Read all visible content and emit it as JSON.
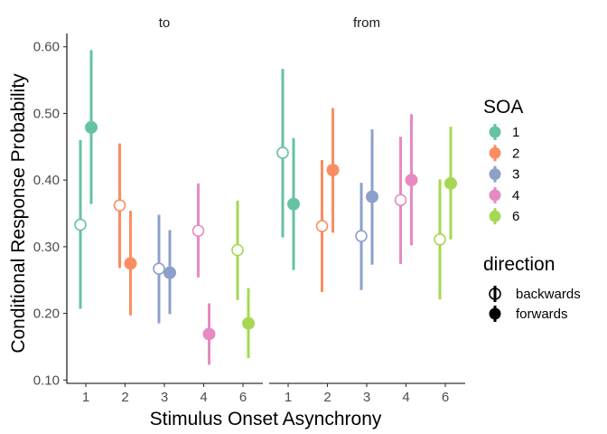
{
  "chart_data": {
    "type": "scatter",
    "xlabel": "Stimulus Onset Asynchrony",
    "ylabel": "Conditional Response Probability",
    "ylim": [
      0.095,
      0.62
    ],
    "yticks": [
      "0.10",
      "0.20",
      "0.30",
      "0.40",
      "0.50",
      "0.60"
    ],
    "categories": [
      "1",
      "2",
      "3",
      "4",
      "6"
    ],
    "panels": [
      "to",
      "from"
    ],
    "grid": false,
    "legend_position": "right",
    "colors": {
      "1": "#66C2A5",
      "2": "#FC8D62",
      "3": "#8DA0CB",
      "4": "#E78AC3",
      "6": "#A6D854"
    },
    "legend": {
      "soa_title": "SOA",
      "soa_items": [
        "1",
        "2",
        "3",
        "4",
        "6"
      ],
      "direction_title": "direction",
      "direction_items": [
        "backwards",
        "forwards"
      ]
    },
    "series": [
      {
        "panel": "to",
        "direction": "backwards",
        "soa": [
          "1",
          "2",
          "3",
          "4",
          "6"
        ],
        "y": [
          0.333,
          0.362,
          0.267,
          0.324,
          0.295
        ],
        "lower": [
          0.207,
          0.268,
          0.185,
          0.254,
          0.22
        ],
        "upper": [
          0.46,
          0.455,
          0.348,
          0.395,
          0.369
        ]
      },
      {
        "panel": "to",
        "direction": "forwards",
        "soa": [
          "1",
          "2",
          "3",
          "4",
          "6"
        ],
        "y": [
          0.479,
          0.275,
          0.261,
          0.169,
          0.185
        ],
        "lower": [
          0.364,
          0.197,
          0.199,
          0.123,
          0.133
        ],
        "upper": [
          0.595,
          0.354,
          0.325,
          0.215,
          0.238
        ]
      },
      {
        "panel": "from",
        "direction": "backwards",
        "soa": [
          "1",
          "2",
          "3",
          "4",
          "6"
        ],
        "y": [
          0.441,
          0.331,
          0.316,
          0.37,
          0.311
        ],
        "lower": [
          0.314,
          0.232,
          0.235,
          0.274,
          0.221
        ],
        "upper": [
          0.567,
          0.43,
          0.396,
          0.465,
          0.401
        ]
      },
      {
        "panel": "from",
        "direction": "forwards",
        "soa": [
          "1",
          "2",
          "3",
          "4",
          "6"
        ],
        "y": [
          0.364,
          0.415,
          0.375,
          0.4,
          0.395
        ],
        "lower": [
          0.265,
          0.321,
          0.273,
          0.302,
          0.311
        ],
        "upper": [
          0.463,
          0.508,
          0.476,
          0.499,
          0.48
        ]
      }
    ]
  }
}
